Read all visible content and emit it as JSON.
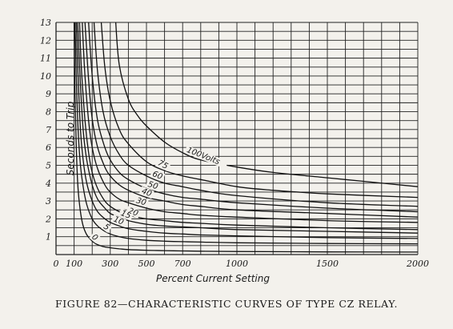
{
  "caption": "FIGURE 82—CHARACTERISTIC CURVES OF TYPE CZ RELAY.",
  "chart_data": {
    "type": "line",
    "title": "",
    "xlabel": "Percent Current Setting",
    "ylabel": "Seconds to Trip",
    "xlim": [
      0,
      2000
    ],
    "ylim": [
      0,
      13
    ],
    "grid": true,
    "x_ticks": [
      0,
      100,
      300,
      500,
      700,
      1000,
      1500,
      2000
    ],
    "x_tick_labels": [
      "0",
      "100",
      "300",
      "500",
      "700",
      "1000",
      "1500",
      "2000"
    ],
    "y_ticks": [
      1,
      2,
      3,
      4,
      5,
      6,
      7,
      8,
      9,
      10,
      11,
      12,
      13
    ],
    "y_tick_labels": [
      "1",
      "2",
      "3",
      "4",
      "5",
      "6",
      "7",
      "8",
      "9",
      "10",
      "11",
      "12",
      "13"
    ],
    "series": [
      {
        "name": "100Volts",
        "x": [
          330,
          350,
          400,
          450,
          500,
          600,
          700,
          800,
          1000,
          1200,
          1500,
          1700,
          2000
        ],
        "y": [
          13.0,
          10.6,
          8.7,
          7.8,
          7.2,
          6.3,
          5.7,
          5.3,
          4.9,
          4.6,
          4.3,
          4.1,
          3.8
        ]
      },
      {
        "name": "75",
        "x": [
          250,
          270,
          300,
          350,
          400,
          500,
          600,
          700,
          800,
          1000,
          1200,
          1500,
          2000
        ],
        "y": [
          13.0,
          10.5,
          8.6,
          7.0,
          6.2,
          5.2,
          4.7,
          4.4,
          4.2,
          3.8,
          3.6,
          3.4,
          3.2
        ]
      },
      {
        "name": "60",
        "x": [
          210,
          230,
          260,
          300,
          350,
          400,
          500,
          600,
          700,
          800,
          1000,
          1500,
          2000
        ],
        "y": [
          13.0,
          10.2,
          8.0,
          6.6,
          5.6,
          5.0,
          4.4,
          4.0,
          3.8,
          3.6,
          3.3,
          2.9,
          2.7
        ]
      },
      {
        "name": "50",
        "x": [
          180,
          200,
          230,
          270,
          300,
          350,
          400,
          500,
          600,
          700,
          800,
          1000,
          1500,
          2000
        ],
        "y": [
          13.0,
          10.0,
          7.5,
          6.0,
          5.3,
          4.6,
          4.2,
          3.7,
          3.4,
          3.2,
          3.1,
          2.9,
          2.6,
          2.4
        ]
      },
      {
        "name": "40",
        "x": [
          160,
          180,
          200,
          230,
          270,
          300,
          350,
          400,
          500,
          600,
          700,
          800,
          1000,
          1500,
          2000
        ],
        "y": [
          13.0,
          9.8,
          7.6,
          6.0,
          4.9,
          4.4,
          3.9,
          3.6,
          3.2,
          3.0,
          2.8,
          2.7,
          2.5,
          2.3,
          2.1
        ]
      },
      {
        "name": "30",
        "x": [
          145,
          160,
          180,
          200,
          230,
          270,
          300,
          350,
          400,
          500,
          600,
          700,
          800,
          1000,
          1500,
          2000
        ],
        "y": [
          13.0,
          10.0,
          7.5,
          6.0,
          4.8,
          3.9,
          3.5,
          3.1,
          2.9,
          2.6,
          2.4,
          2.3,
          2.2,
          2.1,
          1.9,
          1.8
        ]
      },
      {
        "name": "20",
        "x": [
          130,
          140,
          160,
          180,
          200,
          230,
          270,
          300,
          350,
          400,
          500,
          600,
          700,
          800,
          1000,
          1500,
          2000
        ],
        "y": [
          13.0,
          10.5,
          7.5,
          5.7,
          4.6,
          3.7,
          3.0,
          2.7,
          2.4,
          2.2,
          2.0,
          1.9,
          1.8,
          1.75,
          1.65,
          1.5,
          1.4
        ]
      },
      {
        "name": "15",
        "x": [
          120,
          130,
          150,
          170,
          200,
          230,
          270,
          300,
          350,
          400,
          500,
          600,
          700,
          800,
          1000,
          1500,
          2000
        ],
        "y": [
          13.0,
          10.5,
          7.0,
          5.3,
          3.9,
          3.1,
          2.6,
          2.3,
          2.1,
          1.9,
          1.7,
          1.6,
          1.55,
          1.5,
          1.4,
          1.3,
          1.2
        ]
      },
      {
        "name": "10",
        "x": [
          112,
          120,
          135,
          150,
          170,
          200,
          230,
          270,
          300,
          350,
          400,
          500,
          600,
          700,
          800,
          1000,
          1500,
          2000
        ],
        "y": [
          13.0,
          10.5,
          7.0,
          5.3,
          4.0,
          3.0,
          2.4,
          2.0,
          1.8,
          1.6,
          1.45,
          1.3,
          1.2,
          1.15,
          1.1,
          1.05,
          0.95,
          0.9
        ]
      },
      {
        "name": "5",
        "x": [
          105,
          112,
          122,
          135,
          150,
          170,
          200,
          230,
          270,
          300,
          350,
          400,
          500,
          600,
          700,
          800,
          1000,
          1500,
          2000
        ],
        "y": [
          13.0,
          10.0,
          7.0,
          5.0,
          3.8,
          2.8,
          2.0,
          1.6,
          1.3,
          1.15,
          1.0,
          0.9,
          0.8,
          0.75,
          0.72,
          0.7,
          0.66,
          0.62,
          0.6
        ]
      },
      {
        "name": "0",
        "x": [
          100,
          105,
          112,
          120,
          130,
          145,
          165,
          190,
          220,
          260,
          300,
          350,
          400,
          500,
          600,
          700,
          800,
          1000,
          1500,
          2000
        ],
        "y": [
          13.0,
          9.0,
          6.0,
          4.0,
          2.8,
          1.8,
          1.2,
          0.85,
          0.6,
          0.45,
          0.38,
          0.32,
          0.28,
          0.24,
          0.22,
          0.2,
          0.19,
          0.17,
          0.15,
          0.14
        ]
      }
    ]
  }
}
